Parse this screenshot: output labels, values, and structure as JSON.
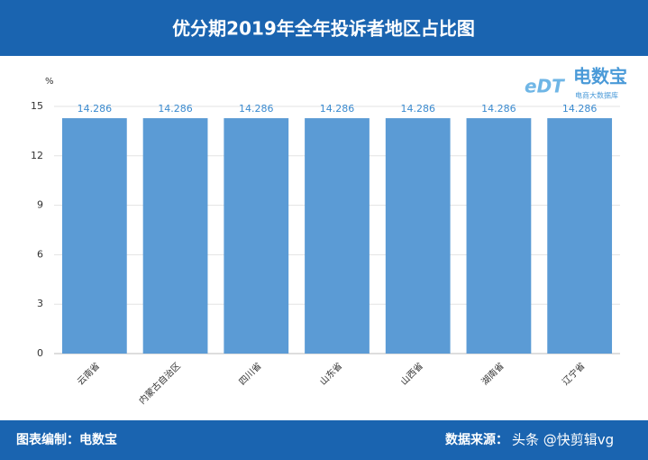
{
  "header": {
    "title": "优分期2019年全年投诉者地区占比图"
  },
  "logo": {
    "mark": "eDT",
    "name": "电数宝",
    "tagline": "电商大数据库"
  },
  "chart_data": {
    "type": "bar",
    "y_unit": "%",
    "categories": [
      "云南省",
      "内蒙古自治区",
      "四川省",
      "山东省",
      "山西省",
      "湖南省",
      "辽宁省"
    ],
    "values": [
      14.286,
      14.286,
      14.286,
      14.286,
      14.286,
      14.286,
      14.286
    ],
    "color": "#5b9bd5",
    "ylim": [
      0,
      15
    ],
    "yticks": [
      0,
      3,
      6,
      9,
      12,
      15
    ],
    "grid": true
  },
  "footer": {
    "compiled_by": "图表编制：电数宝",
    "source": "数据来源：",
    "watermark": "头条 @快剪辑vg"
  }
}
